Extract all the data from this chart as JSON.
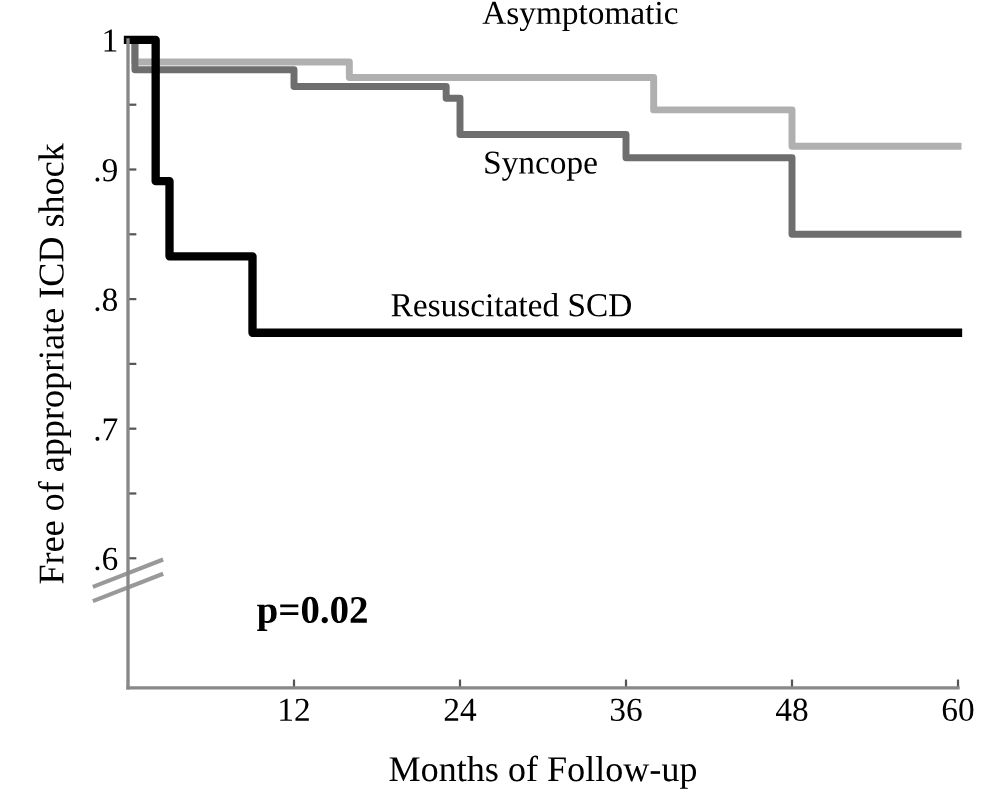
{
  "chart_data": {
    "type": "step",
    "xlabel": "Months of Follow-up",
    "ylabel": "Free of appropriate ICD shock",
    "series": [
      {
        "name": "Asymptomatic",
        "color": "#b0b0b0",
        "x": [
          0,
          0.5,
          16,
          38,
          48,
          60
        ],
        "values": [
          1.0,
          0.983,
          0.971,
          0.946,
          0.918,
          0.918
        ]
      },
      {
        "name": "Syncope",
        "color": "#6e6e6e",
        "x": [
          0,
          0.5,
          12,
          23,
          24,
          36,
          48,
          60
        ],
        "values": [
          1.0,
          0.977,
          0.964,
          0.955,
          0.927,
          0.909,
          0.85,
          0.85
        ]
      },
      {
        "name": "Resuscitated SCD",
        "color": "#000000",
        "x": [
          0,
          2,
          3,
          9,
          60
        ],
        "values": [
          1.0,
          0.891,
          0.833,
          0.774,
          0.774
        ]
      }
    ],
    "xlim": [
      0,
      60
    ],
    "xticks": [
      {
        "value": 0,
        "label": null
      },
      12,
      24,
      36,
      48,
      60
    ],
    "ylim": [
      0.5,
      1.0
    ],
    "yticks": [
      {
        "value": 0.6,
        "label": ".6"
      },
      {
        "value": 0.65,
        "label": null
      },
      {
        "value": 0.7,
        "label": ".7"
      },
      {
        "value": 0.75,
        "label": null
      },
      {
        "value": 0.8,
        "label": ".8"
      },
      {
        "value": 0.85,
        "label": null
      },
      {
        "value": 0.9,
        "label": ".9"
      },
      {
        "value": 0.95,
        "label": null
      },
      {
        "value": 1.0,
        "label": "1"
      }
    ],
    "annotations": [
      "p=0.02"
    ],
    "grid": false,
    "legend": false,
    "line_style": "solid"
  }
}
